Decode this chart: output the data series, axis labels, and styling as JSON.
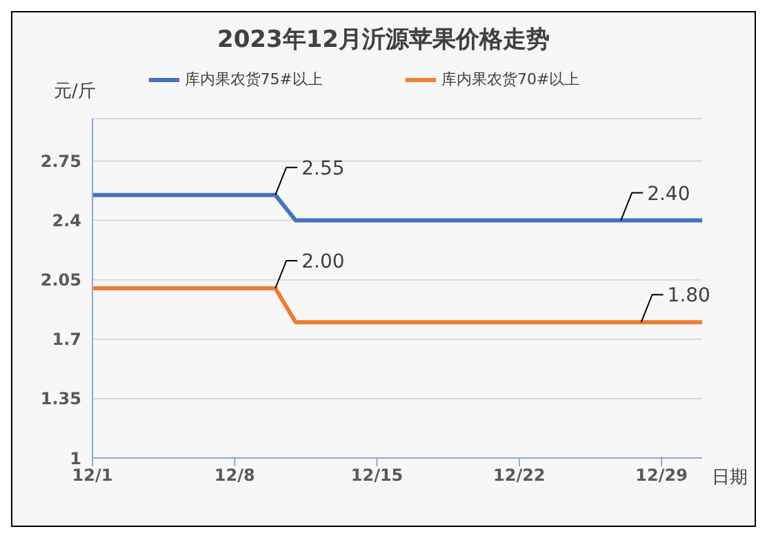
{
  "chart_data": {
    "type": "line",
    "title": "2023年12月沂源苹果价格走势",
    "xlabel": "日期",
    "ylabel": "元/斤",
    "x": [
      "2023-12-01",
      "2023-12-10",
      "2023-12-11",
      "2023-12-31"
    ],
    "series": [
      {
        "name": "库内果农货75#以上",
        "color": "#4472c4",
        "values": [
          2.55,
          2.55,
          2.4,
          2.4
        ]
      },
      {
        "name": "库内果农货70#以上",
        "color": "#ed7d31",
        "values": [
          2.0,
          2.0,
          1.8,
          1.8
        ]
      }
    ],
    "xlim": [
      "2023-12-01",
      "2023-12-31"
    ],
    "xticks": [
      {
        "value": "2023-12-01",
        "label": "12/1"
      },
      {
        "value": "2023-12-08",
        "label": "12/8"
      },
      {
        "value": "2023-12-15",
        "label": "12/15"
      },
      {
        "value": "2023-12-22",
        "label": "12/22"
      },
      {
        "value": "2023-12-29",
        "label": "12/29"
      }
    ],
    "ylim": [
      1,
      3
    ],
    "yticks": [
      1,
      1.35,
      1.7,
      2.05,
      2.4,
      2.75
    ],
    "grid": "y",
    "legend": "top",
    "annotations": [
      {
        "text": "2.55",
        "x": "2023-12-10",
        "y": 2.55
      },
      {
        "text": "2.40",
        "x": "2023-12-27",
        "y": 2.4
      },
      {
        "text": "2.00",
        "x": "2023-12-10",
        "y": 2.0
      },
      {
        "text": "1.80",
        "x": "2023-12-28",
        "y": 1.8
      }
    ]
  }
}
